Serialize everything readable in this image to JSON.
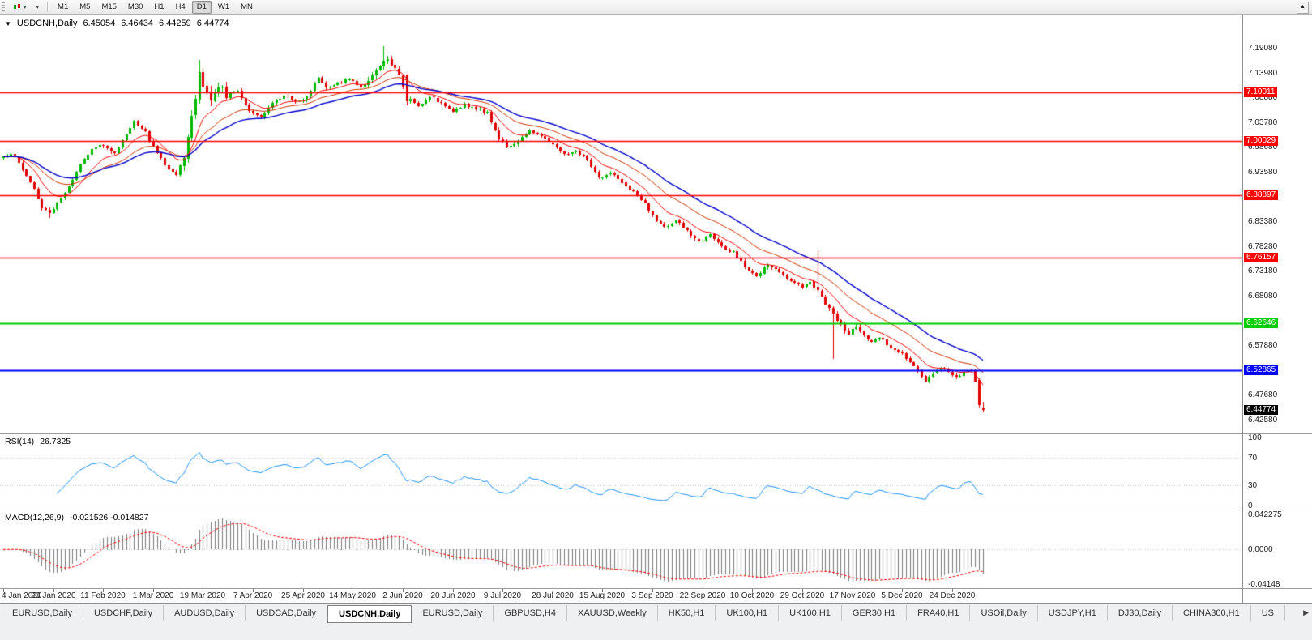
{
  "icons": {
    "one_click_trading": "▼",
    "toolbar_caret": "▾",
    "tabs_scroll_right": "▶",
    "scroll_up": "▲"
  },
  "toolbar": {
    "timeframes": [
      "M1",
      "M5",
      "M15",
      "M30",
      "H1",
      "H4",
      "D1",
      "W1",
      "MN"
    ],
    "active_timeframe": "D1"
  },
  "window": {
    "symbol": "USDCNH,Daily",
    "open": "6.45054",
    "high": "6.46434",
    "low": "6.44259",
    "close": "6.44774"
  },
  "chart_data": {
    "type": "candlestick",
    "symbol": "USDCNH",
    "timeframe": "Daily",
    "count": 256,
    "current_bar": {
      "open": 6.45054,
      "high": 6.46434,
      "low": 6.44259,
      "close": 6.44774
    },
    "price_axis": {
      "anchor_price": 7.1908,
      "step": 0.051,
      "labels": [
        "7.19080",
        "7.13980",
        "7.08880",
        "7.03780",
        "6.98680",
        "6.93580",
        "6.88480",
        "6.83380",
        "6.78280",
        "6.73180",
        "6.68080",
        "6.62980",
        "6.57880",
        "6.52780",
        "6.47680",
        "6.42580"
      ]
    },
    "hlines": [
      {
        "price": 7.10011,
        "label": "7.10011",
        "color": "#FF0000",
        "width": 1.5
      },
      {
        "price": 7.00029,
        "label": "7.00029",
        "color": "#FF0000",
        "width": 1.5
      },
      {
        "price": 6.88897,
        "label": "6.88897",
        "color": "#FF0000",
        "width": 1.5
      },
      {
        "price": 6.76157,
        "label": "6.76157",
        "color": "#FF0000",
        "width": 1.5
      },
      {
        "price": 6.62646,
        "label": "6.62646",
        "color": "#00CC00",
        "width": 2
      },
      {
        "price": 6.52865,
        "label": "6.52865",
        "color": "#0000FF",
        "width": 2
      }
    ],
    "last_price": {
      "price": 6.44774,
      "label": "6.44774",
      "bg": "#000000",
      "fg": "#FFFFFF"
    },
    "colors": {
      "up": "#00B800",
      "down": "#E00000",
      "background": "#FFFFFF"
    },
    "moving_averages": [
      {
        "period": 10,
        "color": "#FF0000",
        "width": 1
      },
      {
        "period": 22,
        "color": "#CC3300",
        "width": 1
      },
      {
        "period": 34,
        "color": "#0000CC",
        "width": 1.4
      }
    ],
    "close_anchors": [
      [
        0,
        6.966
      ],
      [
        2,
        6.975
      ],
      [
        5,
        6.944
      ],
      [
        8,
        6.902
      ],
      [
        10,
        6.864
      ],
      [
        12,
        6.852
      ],
      [
        14,
        6.873
      ],
      [
        17,
        6.908
      ],
      [
        20,
        6.952
      ],
      [
        23,
        6.985
      ],
      [
        26,
        6.993
      ],
      [
        29,
        6.974
      ],
      [
        32,
        7.016
      ],
      [
        34,
        7.043
      ],
      [
        37,
        7.018
      ],
      [
        39,
        6.988
      ],
      [
        42,
        6.952
      ],
      [
        45,
        6.931
      ],
      [
        47,
        6.972
      ],
      [
        49,
        7.052
      ],
      [
        51,
        7.138
      ],
      [
        52,
        7.112
      ],
      [
        54,
        7.086
      ],
      [
        56,
        7.116
      ],
      [
        58,
        7.094
      ],
      [
        61,
        7.106
      ],
      [
        64,
        7.062
      ],
      [
        67,
        7.052
      ],
      [
        70,
        7.078
      ],
      [
        73,
        7.096
      ],
      [
        76,
        7.082
      ],
      [
        79,
        7.09
      ],
      [
        82,
        7.132
      ],
      [
        84,
        7.108
      ],
      [
        87,
        7.118
      ],
      [
        90,
        7.128
      ],
      [
        93,
        7.112
      ],
      [
        96,
        7.136
      ],
      [
        99,
        7.17
      ],
      [
        101,
        7.157
      ],
      [
        103,
        7.142
      ],
      [
        105,
        7.086
      ],
      [
        108,
        7.072
      ],
      [
        111,
        7.094
      ],
      [
        114,
        7.078
      ],
      [
        117,
        7.062
      ],
      [
        120,
        7.076
      ],
      [
        123,
        7.068
      ],
      [
        126,
        7.058
      ],
      [
        129,
        7.006
      ],
      [
        131,
        6.988
      ],
      [
        134,
        7.002
      ],
      [
        137,
        7.022
      ],
      [
        140,
        7.012
      ],
      [
        143,
        6.992
      ],
      [
        146,
        6.972
      ],
      [
        149,
        6.982
      ],
      [
        152,
        6.962
      ],
      [
        155,
        6.923
      ],
      [
        158,
        6.936
      ],
      [
        161,
        6.912
      ],
      [
        164,
        6.896
      ],
      [
        167,
        6.872
      ],
      [
        169,
        6.846
      ],
      [
        172,
        6.822
      ],
      [
        175,
        6.838
      ],
      [
        178,
        6.816
      ],
      [
        181,
        6.792
      ],
      [
        184,
        6.812
      ],
      [
        187,
        6.782
      ],
      [
        190,
        6.772
      ],
      [
        193,
        6.742
      ],
      [
        196,
        6.722
      ],
      [
        199,
        6.746
      ],
      [
        202,
        6.732
      ],
      [
        205,
        6.712
      ],
      [
        208,
        6.702
      ],
      [
        210,
        6.716
      ],
      [
        212,
        6.692
      ],
      [
        214,
        6.662
      ],
      [
        216,
        6.645
      ],
      [
        218,
        6.625
      ],
      [
        220,
        6.605
      ],
      [
        222,
        6.618
      ],
      [
        224,
        6.602
      ],
      [
        226,
        6.586
      ],
      [
        228,
        6.598
      ],
      [
        230,
        6.582
      ],
      [
        232,
        6.572
      ],
      [
        234,
        6.562
      ],
      [
        236,
        6.546
      ],
      [
        238,
        6.526
      ],
      [
        240,
        6.506
      ],
      [
        242,
        6.522
      ],
      [
        244,
        6.533
      ],
      [
        246,
        6.528
      ],
      [
        248,
        6.516
      ],
      [
        250,
        6.523
      ],
      [
        252,
        6.528
      ],
      [
        253,
        6.506
      ],
      [
        254,
        6.458
      ],
      [
        255,
        6.44774
      ]
    ],
    "volatility": {
      "base": 0.0055,
      "ranges": [
        [
          47,
          58,
          0.016
        ],
        [
          95,
          106,
          0.011
        ],
        [
          128,
          133,
          0.009
        ],
        [
          209,
          223,
          0.01
        ]
      ]
    },
    "overrides": [
      {
        "i": 12,
        "l": 6.843
      },
      {
        "i": 51,
        "h": 7.168
      },
      {
        "i": 99,
        "h": 7.1965
      },
      {
        "i": 105,
        "o": 7.138,
        "c": 7.082
      },
      {
        "i": 212,
        "h": 6.778
      },
      {
        "i": 216,
        "l": 6.552
      },
      {
        "i": 253,
        "o": 6.527,
        "c": 6.506
      },
      {
        "i": 254,
        "o": 6.509,
        "h": 6.513,
        "l": 6.451,
        "c": 6.457
      },
      {
        "i": 255,
        "o": 6.45054,
        "h": 6.46434,
        "l": 6.44259,
        "c": 6.44774
      }
    ],
    "date_ticks": [
      {
        "i": 0,
        "label": "4 Jan 2020"
      },
      {
        "i": 13,
        "label": "23 Jan 2020"
      },
      {
        "i": 26,
        "label": "11 Feb 2020"
      },
      {
        "i": 39,
        "label": "1 Mar 2020"
      },
      {
        "i": 52,
        "label": "19 Mar 2020"
      },
      {
        "i": 65,
        "label": "7 Apr 2020"
      },
      {
        "i": 78,
        "label": "25 Apr 2020"
      },
      {
        "i": 91,
        "label": "14 May 2020"
      },
      {
        "i": 104,
        "label": "2 Jun 2020"
      },
      {
        "i": 117,
        "label": "20 Jun 2020"
      },
      {
        "i": 130,
        "label": "9 Jul 2020"
      },
      {
        "i": 143,
        "label": "28 Jul 2020"
      },
      {
        "i": 156,
        "label": "15 Aug 2020"
      },
      {
        "i": 169,
        "label": "3 Sep 2020"
      },
      {
        "i": 182,
        "label": "22 Sep 2020"
      },
      {
        "i": 195,
        "label": "10 Oct 2020"
      },
      {
        "i": 208,
        "label": "29 Oct 2020"
      },
      {
        "i": 221,
        "label": "17 Nov 2020"
      },
      {
        "i": 234,
        "label": "5 Dec 2020"
      },
      {
        "i": 247,
        "label": "24 Dec 2020"
      }
    ],
    "indicators": {
      "rsi": {
        "title": "RSI(14)",
        "value": "26.7325",
        "period": 14,
        "levels": [
          70,
          30
        ],
        "axis_labels": [
          "100",
          "70",
          "30",
          "0"
        ],
        "color": "#1E90FF"
      },
      "macd": {
        "title": "MACD(12,26,9)",
        "values": "-0.021526 -0.014827",
        "fast": 12,
        "slow": 26,
        "signal": 9,
        "axis_labels": [
          "0.042275",
          "0.0000",
          "-0.04148"
        ],
        "range": [
          -0.04148,
          0.042275
        ],
        "hist_color": "#787878",
        "signal_color": "#FF0000"
      }
    }
  },
  "tabs": {
    "items": [
      "EURUSD,Daily",
      "USDCHF,Daily",
      "AUDUSD,Daily",
      "USDCAD,Daily",
      "USDCNH,Daily",
      "EURUSD,Daily",
      "GBPUSD,H4",
      "XAUUSD,Weekly",
      "HK50,H1",
      "UK100,H1",
      "UK100,H1",
      "GER30,H1",
      "FRA40,H1",
      "USOil,Daily",
      "USDJPY,H1",
      "DJ30,Daily",
      "CHINA300,H1",
      "US"
    ],
    "active_index": 4
  }
}
